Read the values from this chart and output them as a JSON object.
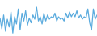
{
  "values": [
    3.0,
    1.2,
    3.5,
    0.8,
    2.8,
    1.5,
    4.0,
    0.5,
    3.2,
    2.0,
    4.5,
    1.0,
    3.8,
    2.5,
    4.2,
    1.8,
    3.0,
    2.2,
    3.5,
    2.8,
    4.8,
    2.5,
    3.2,
    2.0,
    3.8,
    2.5,
    3.5,
    2.8,
    3.2,
    3.0,
    3.8,
    2.5,
    3.2,
    2.8,
    3.0,
    2.5,
    3.8,
    3.0,
    4.0,
    3.2,
    3.8,
    3.2,
    4.2,
    3.0,
    3.5,
    2.8,
    3.2,
    3.0,
    4.5,
    2.2,
    1.0,
    4.5,
    2.8,
    3.5
  ],
  "line_color": "#5aabde",
  "linewidth": 0.9,
  "background_color": "#ffffff",
  "ylim": [
    0,
    6
  ],
  "n_points": 54
}
